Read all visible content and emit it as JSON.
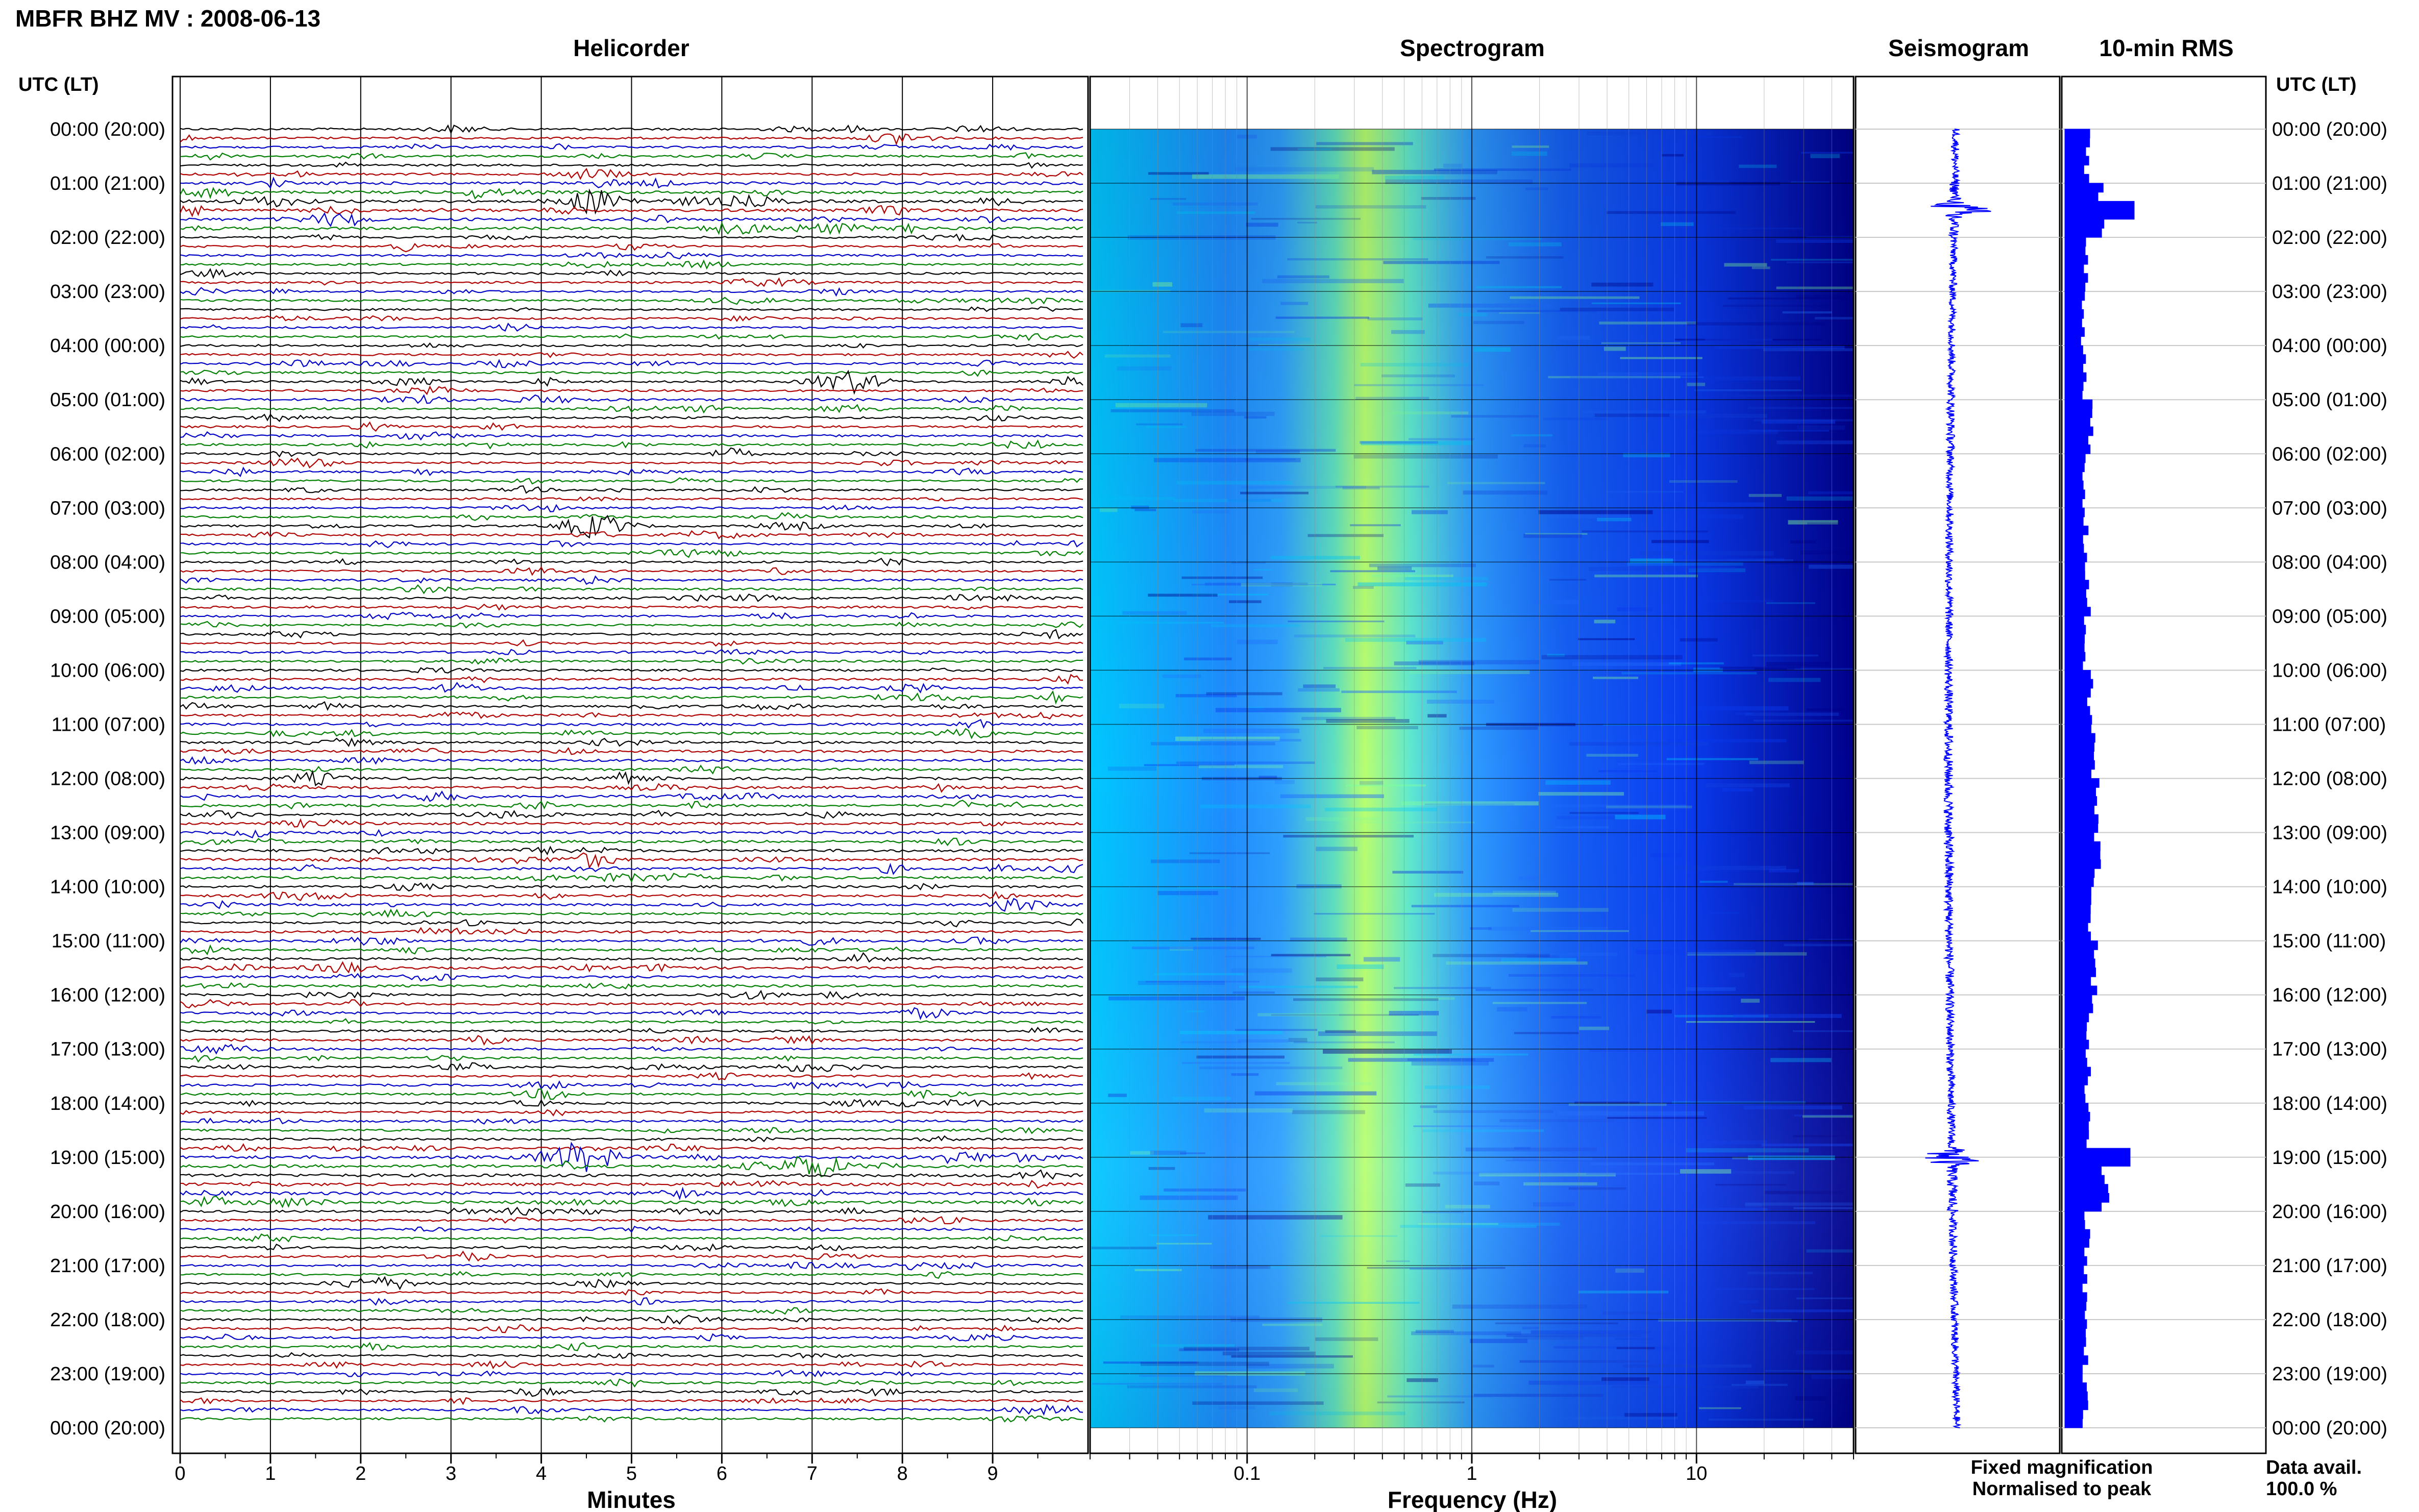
{
  "chart_data": {
    "type": "composite",
    "title": "MBFR BHZ MV : 2008-06-13",
    "panel_titles": {
      "helicorder": "Helicorder",
      "spectrogram": "Spectrogram",
      "seismogram": "Seismogram",
      "rms": "10-min RMS"
    },
    "time_axis_label": "UTC (LT)",
    "time_ticks": [
      "00:00 (20:00)",
      "01:00 (21:00)",
      "02:00 (22:00)",
      "03:00 (23:00)",
      "04:00 (00:00)",
      "05:00 (01:00)",
      "06:00 (02:00)",
      "07:00 (03:00)",
      "08:00 (04:00)",
      "09:00 (05:00)",
      "10:00 (06:00)",
      "11:00 (07:00)",
      "12:00 (08:00)",
      "13:00 (09:00)",
      "14:00 (10:00)",
      "15:00 (11:00)",
      "16:00 (12:00)",
      "17:00 (13:00)",
      "18:00 (14:00)",
      "19:00 (15:00)",
      "20:00 (16:00)",
      "21:00 (17:00)",
      "22:00 (18:00)",
      "23:00 (19:00)",
      "00:00 (20:00)"
    ],
    "helicorder": {
      "xlabel": "Minutes",
      "xlim": [
        0,
        10
      ],
      "xticks": [
        "0",
        "1",
        "2",
        "3",
        "4",
        "5",
        "6",
        "7",
        "8",
        "9"
      ],
      "trace_colors": [
        "#000000",
        "#b00000",
        "#0000c8",
        "#008000"
      ],
      "notable_events": [
        {
          "utc": "01:20",
          "minute": 4.6
        },
        {
          "utc": "04:40",
          "minute": 7.4
        },
        {
          "utc": "07:20",
          "minute": 4.6
        },
        {
          "utc": "19:00",
          "minute": 4.5
        },
        {
          "utc": "19:10",
          "minute": 7.0
        }
      ]
    },
    "spectrogram": {
      "xlabel": "Frequency (Hz)",
      "xscale": "log",
      "xlim": [
        0.02,
        50
      ],
      "xticks": [
        "0.1",
        "1",
        "10"
      ],
      "colormap": [
        "#00008b",
        "#0000ff",
        "#1e6bff",
        "#00c8ff",
        "#7fffa0",
        "#e0ff60"
      ]
    },
    "seismogram": {},
    "rms": {
      "legend": [
        {
          "label": "Fixed magnification",
          "color": "#0000ff"
        },
        {
          "label": "Normalised to peak",
          "color": "#ff0000"
        }
      ],
      "data_avail_label": "Data avail.",
      "data_avail_value": "100.0 %",
      "hourly_relative_level": [
        0.55,
        0.95,
        0.5,
        0.45,
        0.5,
        0.6,
        0.45,
        0.5,
        0.55,
        0.5,
        0.6,
        0.7,
        0.75,
        0.8,
        0.65,
        0.7,
        0.6,
        0.55,
        0.55,
        1.0,
        0.55,
        0.5,
        0.5,
        0.5
      ],
      "spikes": [
        {
          "utc": "01:30",
          "relative_level": 1.7
        },
        {
          "utc": "19:00",
          "relative_level": 1.6
        }
      ]
    }
  }
}
